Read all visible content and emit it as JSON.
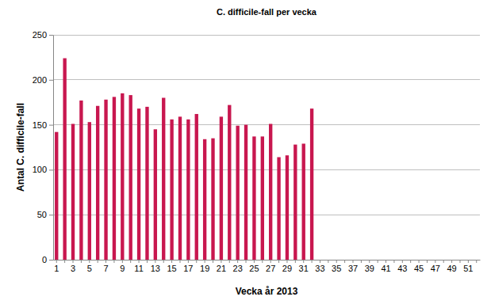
{
  "chart_data": {
    "type": "bar",
    "title": "C. difficile-fall per vecka",
    "x_label": "Vecka år 2013",
    "y_label": "Antal C. difficile-fall",
    "categories": [
      1,
      null,
      3,
      null,
      5,
      null,
      7,
      null,
      9,
      null,
      11,
      null,
      13,
      null,
      15,
      null,
      17,
      null,
      19,
      null,
      21,
      null,
      23,
      null,
      25,
      null,
      27,
      null,
      29,
      null,
      31,
      null,
      33,
      null,
      35,
      null,
      37,
      null,
      39,
      null,
      41,
      null,
      43,
      null,
      45,
      null,
      47,
      null,
      49,
      null,
      51,
      null
    ],
    "values": [
      142,
      224,
      151,
      177,
      153,
      171,
      178,
      181,
      185,
      183,
      168,
      170,
      145,
      180,
      156,
      159,
      156,
      162,
      134,
      135,
      159,
      172,
      149,
      150,
      137,
      137,
      151,
      114,
      116,
      128,
      129,
      168,
      null,
      null,
      null,
      null,
      null,
      null,
      null,
      null,
      null,
      null,
      null,
      null,
      null,
      null,
      null,
      null,
      null,
      null,
      null,
      null
    ],
    "color": "#c8174f",
    "ylim": [
      0,
      250
    ],
    "yticks": [
      0,
      50,
      100,
      150,
      200,
      250
    ],
    "grid": true
  }
}
